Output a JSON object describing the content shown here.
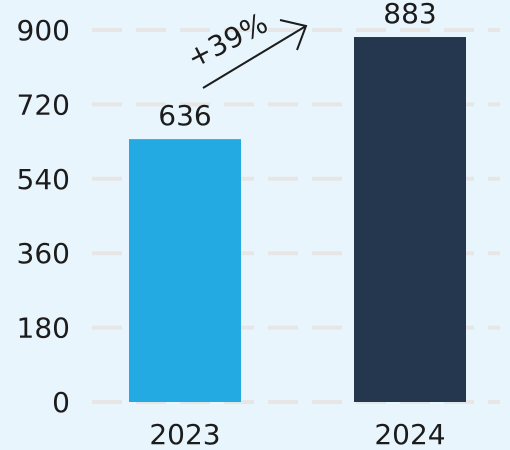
{
  "chart_data": {
    "type": "bar",
    "categories": [
      "2023",
      "2024"
    ],
    "values": [
      636,
      883
    ],
    "colors": [
      "#24aae2",
      "#25364f"
    ],
    "ylim": [
      0,
      900
    ],
    "yticks": [
      0,
      180,
      360,
      540,
      720,
      900
    ],
    "grid": true,
    "annotation": "+39%"
  }
}
